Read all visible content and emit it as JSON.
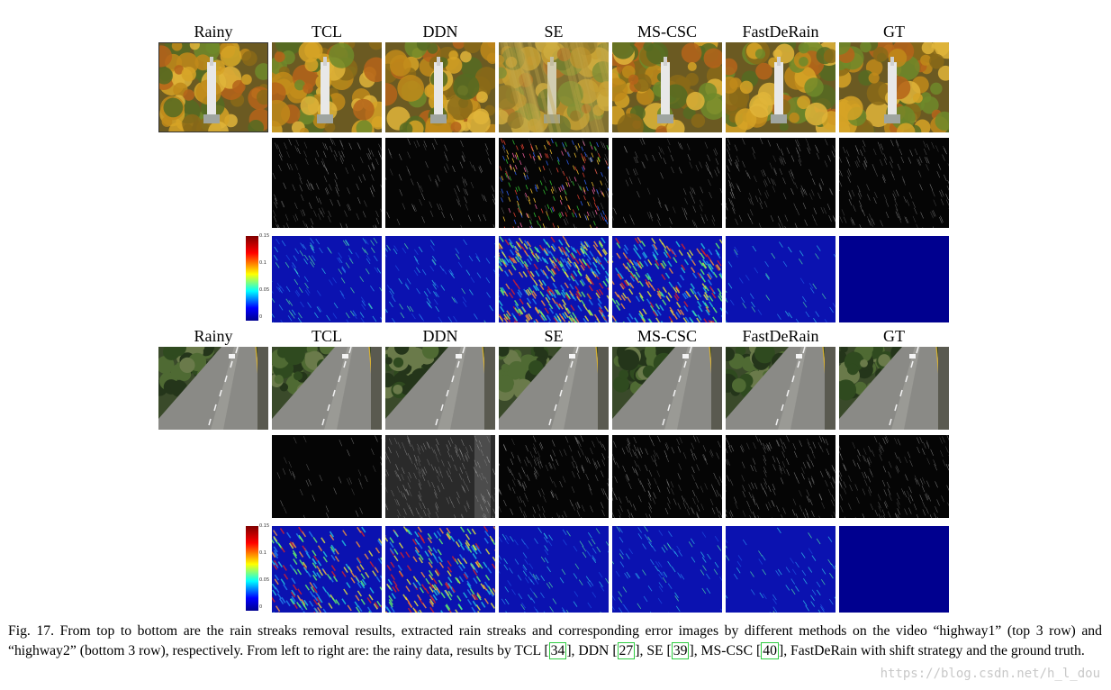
{
  "figure": {
    "column_labels": [
      "Rainy",
      "TCL",
      "DDN",
      "SE",
      "MS-CSC",
      "FastDeRain",
      "GT"
    ],
    "colorbar_ticks": [
      "0.15",
      "0.1",
      "0.05",
      "0"
    ],
    "panels": [
      {
        "name": "highway1",
        "row_types": [
          "result",
          "rain-streaks",
          "error-map"
        ]
      },
      {
        "name": "highway2",
        "row_types": [
          "result",
          "rain-streaks",
          "error-map"
        ]
      }
    ]
  },
  "caption": {
    "prefix": "Fig. 17.",
    "part1": "From top to bottom are the rain streaks removal results, extracted rain streaks and corresponding error images by different methods on the video “highway1” (top 3 row) and “highway2” (bottom 3 row), respectively. From left to right are: the rainy data, results by TCL ",
    "ref1": "34",
    "part2": ", DDN ",
    "ref2": "27",
    "part3": ", SE ",
    "ref3": "39",
    "part4": ", MS-CSC ",
    "ref4": "40",
    "part5": ", FastDeRain with shift strategy and the ground truth."
  },
  "watermark": "https://blog.csdn.net/h_l_dou"
}
